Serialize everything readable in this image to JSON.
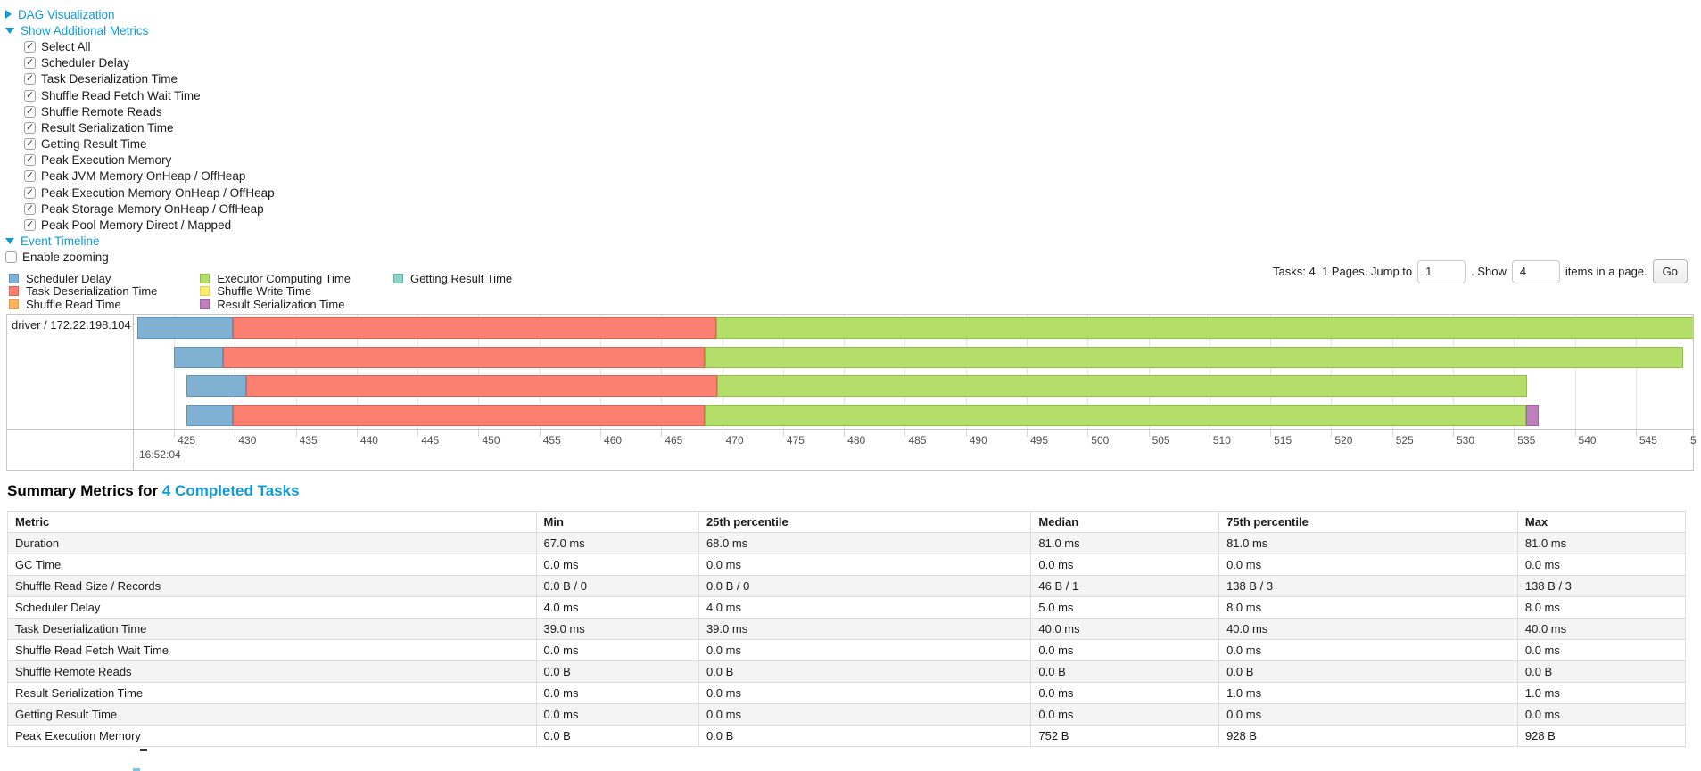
{
  "colors": {
    "link": "#0d9cd8",
    "scheduler-delay": {
      "fill": "#80B1D3",
      "border": "#5f94bf"
    },
    "task-deserialization": {
      "fill": "#FB8072",
      "border": "#e2604f"
    },
    "shuffle-read": {
      "fill": "#FDB462",
      "border": "#e89a3c"
    },
    "executor-computing": {
      "fill": "#B3DE69",
      "border": "#8fc23e"
    },
    "shuffle-write": {
      "fill": "#FFED6F",
      "border": "#e6d34f"
    },
    "result-serialization": {
      "fill": "#BC80BD",
      "border": "#a561a8"
    },
    "getting-result": {
      "fill": "#8DD3C7",
      "border": "#5fb8a5"
    }
  },
  "metrics_panel": {
    "rows": [
      {
        "type": "link",
        "arrow": "right",
        "label": "DAG Visualization"
      },
      {
        "type": "link",
        "arrow": "down",
        "label": "Show Additional Metrics"
      },
      {
        "type": "checkbox",
        "checked": true,
        "indent": true,
        "label": "Select All"
      },
      {
        "type": "checkbox",
        "checked": true,
        "indent": true,
        "label": "Scheduler Delay"
      },
      {
        "type": "checkbox",
        "checked": true,
        "indent": true,
        "label": "Task Deserialization Time"
      },
      {
        "type": "checkbox",
        "checked": true,
        "indent": true,
        "label": "Shuffle Read Fetch Wait Time"
      },
      {
        "type": "checkbox",
        "checked": true,
        "indent": true,
        "label": "Shuffle Remote Reads"
      },
      {
        "type": "checkbox",
        "checked": true,
        "indent": true,
        "label": "Result Serialization Time"
      },
      {
        "type": "checkbox",
        "checked": true,
        "indent": true,
        "label": "Getting Result Time"
      },
      {
        "type": "checkbox",
        "checked": true,
        "indent": true,
        "label": "Peak Execution Memory"
      },
      {
        "type": "checkbox",
        "checked": true,
        "indent": true,
        "label": "Peak JVM Memory OnHeap / OffHeap"
      },
      {
        "type": "checkbox",
        "checked": true,
        "indent": true,
        "label": "Peak Execution Memory OnHeap / OffHeap"
      },
      {
        "type": "checkbox",
        "checked": true,
        "indent": true,
        "label": "Peak Storage Memory OnHeap / OffHeap"
      },
      {
        "type": "checkbox",
        "checked": true,
        "indent": true,
        "label": "Peak Pool Memory Direct / Mapped"
      },
      {
        "type": "link",
        "arrow": "down",
        "label": "Event Timeline"
      },
      {
        "type": "checkbox",
        "checked": false,
        "indent": false,
        "label": "Enable zooming"
      }
    ]
  },
  "legend": {
    "columns": [
      [
        {
          "key": "scheduler-delay",
          "label": "Scheduler Delay"
        },
        {
          "key": "task-deserialization",
          "label": "Task Deserialization Time"
        },
        {
          "key": "shuffle-read",
          "label": "Shuffle Read Time"
        }
      ],
      [
        {
          "key": "executor-computing",
          "label": "Executor Computing Time"
        },
        {
          "key": "shuffle-write",
          "label": "Shuffle Write Time"
        },
        {
          "key": "result-serialization",
          "label": "Result Serialization Time"
        }
      ],
      [
        {
          "key": "getting-result",
          "label": "Getting Result Time"
        }
      ]
    ]
  },
  "pagination": {
    "prefix": "Tasks: 4. 1 Pages. Jump to",
    "jump_value": "1",
    "middle_label": ". Show",
    "show_value": "4",
    "suffix": "items in a page.",
    "go_label": "Go"
  },
  "chart_data": {
    "type": "timeline",
    "group_label": "driver / 172.22.198.104",
    "time_base": "16:52:04",
    "axis_unit": "milliseconds within 16:52:04",
    "domain_ms": [
      421.7,
      549.7
    ],
    "ticks_ms": [
      425,
      430,
      435,
      440,
      445,
      450,
      455,
      460,
      465,
      470,
      475,
      480,
      485,
      490,
      495,
      500,
      505,
      510,
      515,
      520,
      525,
      530,
      535,
      540,
      545
    ],
    "edge_clipped_label": "5",
    "tasks": [
      {
        "segments": [
          {
            "name": "scheduler-delay",
            "start": 422.0,
            "end": 429.8
          },
          {
            "name": "task-deserialization",
            "start": 429.8,
            "end": 469.5
          },
          {
            "name": "executor-computing",
            "start": 469.5,
            "end": 549.8
          }
        ]
      },
      {
        "segments": [
          {
            "name": "scheduler-delay",
            "start": 425.0,
            "end": 429.0
          },
          {
            "name": "task-deserialization",
            "start": 429.0,
            "end": 468.6
          },
          {
            "name": "executor-computing",
            "start": 468.6,
            "end": 548.9
          }
        ]
      },
      {
        "segments": [
          {
            "name": "scheduler-delay",
            "start": 426.0,
            "end": 430.9
          },
          {
            "name": "task-deserialization",
            "start": 430.9,
            "end": 469.6
          },
          {
            "name": "executor-computing",
            "start": 469.6,
            "end": 536.1
          }
        ]
      },
      {
        "segments": [
          {
            "name": "scheduler-delay",
            "start": 426.0,
            "end": 429.8
          },
          {
            "name": "task-deserialization",
            "start": 429.8,
            "end": 468.6
          },
          {
            "name": "executor-computing",
            "start": 468.6,
            "end": 536.0
          },
          {
            "name": "result-serialization",
            "start": 536.0,
            "end": 537.0
          }
        ]
      }
    ]
  },
  "summary": {
    "title_prefix": "Summary Metrics for",
    "title_link": "4 Completed Tasks",
    "table": {
      "headers": [
        "Metric",
        "Min",
        "25th percentile",
        "Median",
        "75th percentile",
        "Max"
      ],
      "col_widths_pct": [
        31.5,
        9.7,
        19.8,
        11.2,
        17.8,
        10.0
      ],
      "rows": [
        {
          "metric": "Duration",
          "values": [
            "67.0 ms",
            "68.0 ms",
            "81.0 ms",
            "81.0 ms",
            "81.0 ms"
          ]
        },
        {
          "metric": "GC Time",
          "values": [
            "0.0 ms",
            "0.0 ms",
            "0.0 ms",
            "0.0 ms",
            "0.0 ms"
          ]
        },
        {
          "metric": "Shuffle Read Size / Records",
          "values": [
            "0.0 B / 0",
            "0.0 B / 0",
            "46 B / 1",
            "138 B / 3",
            "138 B / 3"
          ]
        },
        {
          "metric": "Scheduler Delay",
          "values": [
            "4.0 ms",
            "4.0 ms",
            "5.0 ms",
            "8.0 ms",
            "8.0 ms"
          ]
        },
        {
          "metric": "Task Deserialization Time",
          "values": [
            "39.0 ms",
            "39.0 ms",
            "40.0 ms",
            "40.0 ms",
            "40.0 ms"
          ]
        },
        {
          "metric": "Shuffle Read Fetch Wait Time",
          "values": [
            "0.0 ms",
            "0.0 ms",
            "0.0 ms",
            "0.0 ms",
            "0.0 ms"
          ]
        },
        {
          "metric": "Shuffle Remote Reads",
          "values": [
            "0.0 B",
            "0.0 B",
            "0.0 B",
            "0.0 B",
            "0.0 B"
          ]
        },
        {
          "metric": "Result Serialization Time",
          "values": [
            "0.0 ms",
            "0.0 ms",
            "0.0 ms",
            "1.0 ms",
            "1.0 ms"
          ]
        },
        {
          "metric": "Getting Result Time",
          "values": [
            "0.0 ms",
            "0.0 ms",
            "0.0 ms",
            "0.0 ms",
            "0.0 ms"
          ]
        },
        {
          "metric": "Peak Execution Memory",
          "values": [
            "0.0 B",
            "0.0 B",
            "752 B",
            "928 B",
            "928 B"
          ]
        }
      ]
    }
  }
}
